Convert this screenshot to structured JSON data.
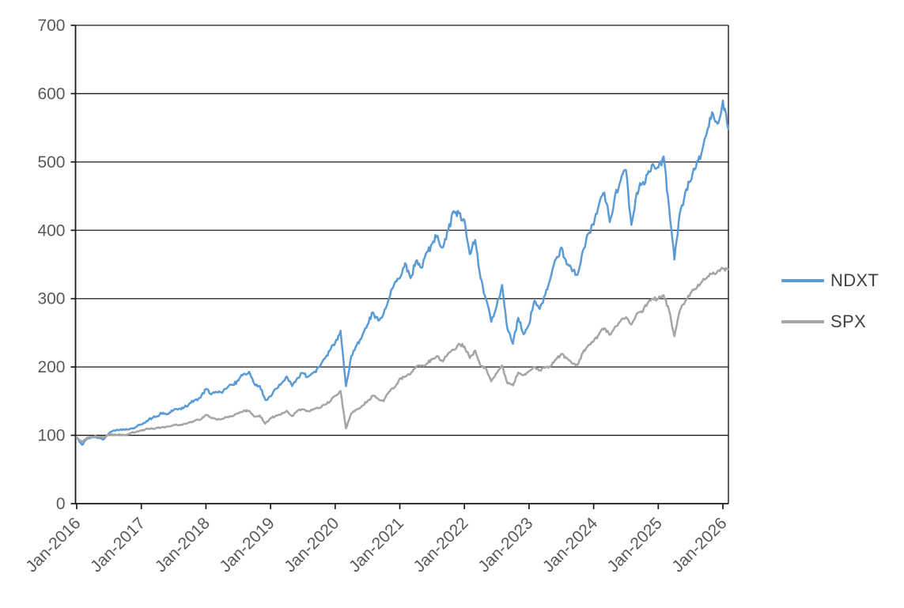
{
  "colors": {
    "ndxt_line": "#5B9BD5",
    "spx_line": "#A5A5A5",
    "axis_line": "#1a1a1a",
    "gridline": "#1a1a1a",
    "tick_label": "#595959",
    "legend_label": "#404040",
    "background": "#ffffff"
  },
  "chart_data": {
    "type": "line",
    "title": "",
    "xlabel": "",
    "ylabel": "",
    "ylim": [
      0,
      700
    ],
    "y_tick_step": 100,
    "y_tick_labels": [
      "0",
      "100",
      "200",
      "300",
      "400",
      "500",
      "600",
      "700"
    ],
    "x_tick_labels": [
      "Jan-2016",
      "Jan-2017",
      "Jan-2018",
      "Jan-2019",
      "Jan-2020",
      "Jan-2021",
      "Jan-2022",
      "Jan-2023",
      "Jan-2024",
      "Jan-2025",
      "Jan-2026"
    ],
    "x_frequency": "monthly",
    "x_start": "Jan-2016",
    "x_end": "Feb-2026",
    "grid": "horizontal",
    "legend_position": "right",
    "series": [
      {
        "name": "NDXT",
        "color": "#5B9BD5",
        "values": [
          97,
          86,
          95,
          97,
          96,
          94,
          103,
          107,
          108,
          108,
          110,
          112,
          116,
          121,
          125,
          128,
          133,
          131,
          137,
          139,
          141,
          147,
          152,
          155,
          168,
          160,
          163,
          162,
          170,
          174,
          180,
          190,
          193,
          175,
          172,
          152,
          157,
          168,
          176,
          186,
          172,
          184,
          191,
          186,
          192,
          200,
          212,
          224,
          235,
          253,
          172,
          216,
          232,
          245,
          262,
          280,
          268,
          278,
          300,
          322,
          330,
          352,
          330,
          355,
          345,
          368,
          380,
          392,
          375,
          400,
          428,
          425,
          415,
          365,
          386,
          330,
          300,
          266,
          290,
          320,
          255,
          234,
          272,
          248,
          262,
          297,
          285,
          305,
          330,
          358,
          375,
          350,
          340,
          335,
          370,
          395,
          408,
          438,
          455,
          412,
          452,
          472,
          488,
          408,
          455,
          468,
          482,
          497,
          492,
          508,
          435,
          357,
          425,
          455,
          472,
          492,
          512,
          542,
          573,
          556,
          590,
          548
        ]
      },
      {
        "name": "SPX",
        "color": "#A5A5A5",
        "values": [
          97,
          90,
          97,
          98,
          98,
          97,
          101,
          101,
          101,
          100,
          103,
          105,
          107,
          110,
          110,
          111,
          112,
          113,
          115,
          115,
          117,
          119,
          122,
          123,
          130,
          125,
          123,
          124,
          127,
          128,
          132,
          136,
          136,
          127,
          129,
          117,
          125,
          129,
          131,
          136,
          128,
          136,
          138,
          135,
          138,
          140,
          145,
          149,
          158,
          165,
          110,
          132,
          138,
          143,
          150,
          158,
          153,
          150,
          164,
          170,
          183,
          186,
          190,
          200,
          202,
          205,
          211,
          216,
          208,
          220,
          225,
          234,
          230,
          213,
          224,
          202,
          198,
          179,
          191,
          202,
          176,
          173,
          192,
          188,
          194,
          200,
          195,
          199,
          201,
          211,
          219,
          213,
          205,
          203,
          221,
          232,
          238,
          248,
          257,
          247,
          259,
          267,
          273,
          262,
          278,
          280,
          293,
          300,
          300,
          305,
          283,
          245,
          282,
          296,
          308,
          314,
          324,
          330,
          336,
          340,
          344,
          343
        ]
      }
    ]
  }
}
